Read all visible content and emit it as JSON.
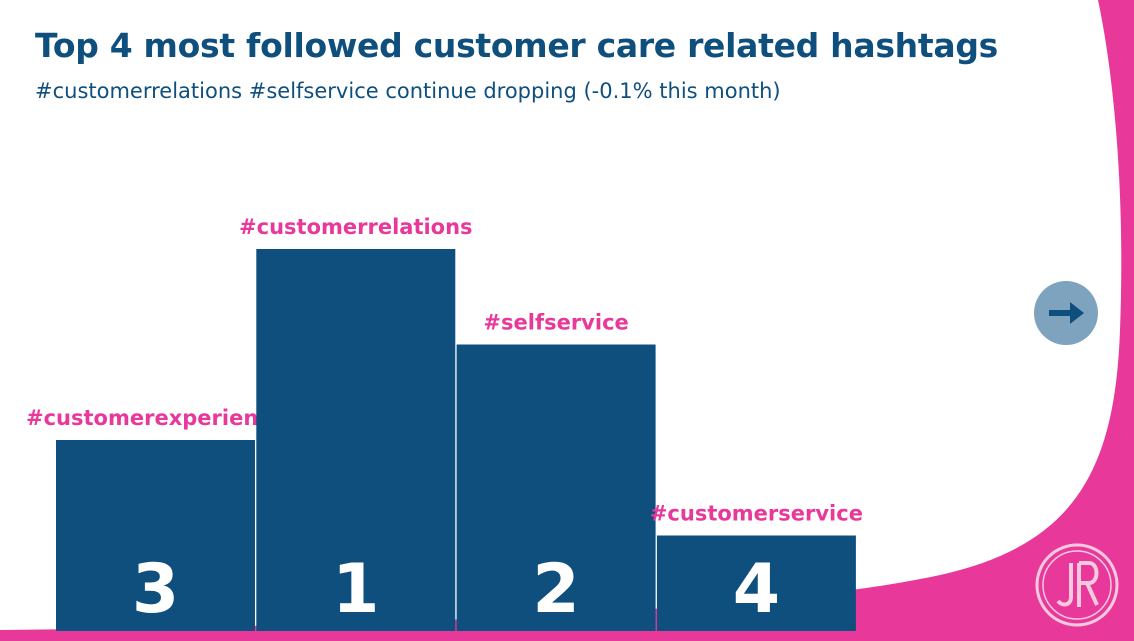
{
  "header": {
    "title": "Top 4 most followed customer care related hashtags",
    "subtitle": "#customerrelations #selfservice continue dropping (-0.1% this month)"
  },
  "colors": {
    "primary": "#0f4f7e",
    "accent": "#e8399b",
    "button": "#7ea3bf"
  },
  "icons": {
    "next": "arrow-right-icon",
    "logo": "jr-logo-icon"
  },
  "chart_data": {
    "type": "bar",
    "title": "",
    "xlabel": "",
    "ylabel": "",
    "ylim": [
      0,
      4
    ],
    "grid": false,
    "categories": [
      "#customerexperience",
      "#customerrelations",
      "#selfservice",
      "#customerservice"
    ],
    "ranks": [
      "3",
      "1",
      "2",
      "4"
    ],
    "values": [
      2,
      4,
      3,
      1
    ]
  }
}
